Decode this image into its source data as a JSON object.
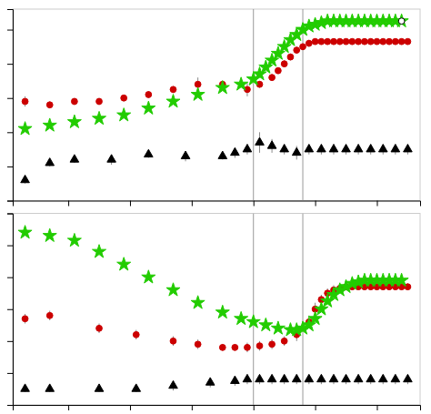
{
  "chart_data": [
    {
      "type": "scatter",
      "xlim": [
        -0.18,
        1.14
      ],
      "xticks": [
        0.0,
        0.2,
        0.4,
        0.6,
        0.8,
        1.0
      ],
      "ylim": [
        0.0,
        1.12
      ],
      "yticks": [
        0.0,
        0.2,
        0.4,
        0.6,
        0.8,
        1.0
      ],
      "tick_labels": false,
      "vlines": [
        {
          "x": 0.6,
          "color": "#999999"
        },
        {
          "x": 0.76,
          "color": "#999999"
        }
      ],
      "series": [
        {
          "color": "#cc0000",
          "marker": "circle",
          "x": [
            -0.14,
            -0.06,
            0.02,
            0.1,
            0.18,
            0.26,
            0.34,
            0.42,
            0.5,
            0.58,
            0.62,
            0.66,
            0.68,
            0.7,
            0.72,
            0.74,
            0.76,
            0.78,
            0.8,
            0.82,
            0.84,
            0.86,
            0.88,
            0.9,
            0.92,
            0.94,
            0.96,
            0.98,
            1.0,
            1.02,
            1.04,
            1.06,
            1.08,
            1.1
          ],
          "values": [
            0.58,
            0.56,
            0.58,
            0.58,
            0.6,
            0.62,
            0.65,
            0.68,
            0.68,
            0.65,
            0.68,
            0.72,
            0.76,
            0.8,
            0.84,
            0.88,
            0.9,
            0.92,
            0.93,
            0.93,
            0.93,
            0.93,
            0.93,
            0.93,
            0.93,
            0.93,
            0.93,
            0.93,
            0.93,
            0.93,
            0.93,
            0.93,
            0.93,
            0.93
          ],
          "errors": [
            0.03,
            0.02,
            0.02,
            0.02,
            0.02,
            0.02,
            0.02,
            0.04,
            0.02,
            0.04,
            0.02,
            0.02,
            0.02,
            0.02,
            0.02,
            0.02,
            0.02,
            0.02,
            0.01,
            0.01,
            0.01,
            0.01,
            0.01,
            0.01,
            0.01,
            0.01,
            0.01,
            0.01,
            0.01,
            0.01,
            0.01,
            0.01,
            0.01,
            0.01
          ]
        },
        {
          "color": "#22cc00",
          "marker": "star",
          "x": [
            -0.14,
            -0.06,
            0.02,
            0.1,
            0.18,
            0.26,
            0.34,
            0.42,
            0.5,
            0.56,
            0.6,
            0.62,
            0.64,
            0.66,
            0.68,
            0.7,
            0.72,
            0.74,
            0.76,
            0.78,
            0.8,
            0.82,
            0.84,
            0.86,
            0.88,
            0.9,
            0.92,
            0.94,
            0.96,
            0.98,
            1.0,
            1.02,
            1.04,
            1.06,
            1.08
          ],
          "values": [
            0.42,
            0.44,
            0.46,
            0.48,
            0.5,
            0.54,
            0.58,
            0.62,
            0.66,
            0.68,
            0.71,
            0.74,
            0.78,
            0.82,
            0.86,
            0.9,
            0.94,
            0.97,
            1.0,
            1.02,
            1.03,
            1.04,
            1.05,
            1.05,
            1.05,
            1.05,
            1.05,
            1.05,
            1.05,
            1.05,
            1.05,
            1.05,
            1.05,
            1.05,
            1.05
          ]
        },
        {
          "color": "#000000",
          "marker": "triangle",
          "x": [
            -0.14,
            -0.06,
            0.02,
            0.14,
            0.26,
            0.38,
            0.5,
            0.54,
            0.58,
            0.62,
            0.66,
            0.7,
            0.74,
            0.78,
            0.82,
            0.86,
            0.9,
            0.94,
            0.98,
            1.02,
            1.06,
            1.1
          ],
          "values": [
            0.12,
            0.22,
            0.24,
            0.24,
            0.27,
            0.26,
            0.26,
            0.28,
            0.3,
            0.34,
            0.32,
            0.3,
            0.28,
            0.3,
            0.3,
            0.3,
            0.3,
            0.3,
            0.3,
            0.3,
            0.3,
            0.3
          ],
          "errors": [
            0.02,
            0.02,
            0.02,
            0.03,
            0.02,
            0.03,
            0.02,
            0.03,
            0.03,
            0.06,
            0.04,
            0.03,
            0.04,
            0.03,
            0.03,
            0.03,
            0.03,
            0.03,
            0.03,
            0.03,
            0.03,
            0.03
          ]
        },
        {
          "color": "#000000",
          "marker": "open_circle",
          "x": [
            1.08
          ],
          "values": [
            1.05
          ]
        }
      ]
    },
    {
      "type": "scatter",
      "xlim": [
        -0.18,
        1.14
      ],
      "xticks": [
        0.0,
        0.2,
        0.4,
        0.6,
        0.8,
        1.0
      ],
      "ylim": [
        0.0,
        1.2
      ],
      "yticks": [
        0.0,
        0.2,
        0.4,
        0.6,
        0.8,
        1.0,
        1.2
      ],
      "tick_labels": false,
      "vlines": [
        {
          "x": 0.6,
          "color": "#999999"
        },
        {
          "x": 0.76,
          "color": "#999999"
        }
      ],
      "series": [
        {
          "color": "#cc0000",
          "marker": "circle",
          "x": [
            -0.14,
            -0.06,
            0.1,
            0.22,
            0.34,
            0.42,
            0.5,
            0.54,
            0.58,
            0.62,
            0.66,
            0.7,
            0.74,
            0.78,
            0.8,
            0.82,
            0.84,
            0.86,
            0.88,
            0.9,
            0.92,
            0.94,
            0.96,
            0.98,
            1.0,
            1.02,
            1.04,
            1.06,
            1.08,
            1.1
          ],
          "values": [
            0.54,
            0.56,
            0.48,
            0.44,
            0.4,
            0.38,
            0.36,
            0.36,
            0.36,
            0.37,
            0.38,
            0.4,
            0.44,
            0.52,
            0.6,
            0.66,
            0.7,
            0.72,
            0.73,
            0.74,
            0.74,
            0.74,
            0.74,
            0.74,
            0.74,
            0.74,
            0.74,
            0.74,
            0.74,
            0.74
          ],
          "errors": [
            0.03,
            0.03,
            0.03,
            0.03,
            0.03,
            0.03,
            0.02,
            0.02,
            0.03,
            0.03,
            0.03,
            0.03,
            0.04,
            0.04,
            0.04,
            0.03,
            0.03,
            0.03,
            0.02,
            0.02,
            0.02,
            0.02,
            0.02,
            0.02,
            0.02,
            0.02,
            0.02,
            0.02,
            0.02,
            0.02
          ]
        },
        {
          "color": "#22cc00",
          "marker": "star",
          "x": [
            -0.14,
            -0.06,
            0.02,
            0.1,
            0.18,
            0.26,
            0.34,
            0.42,
            0.5,
            0.56,
            0.6,
            0.64,
            0.68,
            0.72,
            0.74,
            0.76,
            0.78,
            0.8,
            0.82,
            0.84,
            0.86,
            0.88,
            0.9,
            0.92,
            0.94,
            0.96,
            0.98,
            1.0,
            1.02,
            1.04,
            1.06,
            1.08
          ],
          "values": [
            1.08,
            1.06,
            1.03,
            0.96,
            0.88,
            0.8,
            0.72,
            0.64,
            0.58,
            0.54,
            0.52,
            0.5,
            0.48,
            0.47,
            0.47,
            0.48,
            0.5,
            0.54,
            0.6,
            0.65,
            0.69,
            0.72,
            0.74,
            0.76,
            0.77,
            0.78,
            0.78,
            0.78,
            0.78,
            0.78,
            0.78,
            0.78
          ]
        },
        {
          "color": "#000000",
          "marker": "triangle",
          "x": [
            -0.14,
            -0.06,
            0.1,
            0.22,
            0.34,
            0.46,
            0.54,
            0.58,
            0.62,
            0.66,
            0.7,
            0.74,
            0.78,
            0.82,
            0.86,
            0.9,
            0.94,
            0.98,
            1.02,
            1.06,
            1.1
          ],
          "values": [
            0.1,
            0.1,
            0.1,
            0.1,
            0.12,
            0.14,
            0.15,
            0.16,
            0.16,
            0.16,
            0.16,
            0.16,
            0.16,
            0.16,
            0.16,
            0.16,
            0.16,
            0.16,
            0.16,
            0.16,
            0.16
          ],
          "errors": [
            0.02,
            0.02,
            0.02,
            0.02,
            0.03,
            0.03,
            0.03,
            0.03,
            0.03,
            0.03,
            0.03,
            0.03,
            0.03,
            0.03,
            0.03,
            0.03,
            0.03,
            0.03,
            0.03,
            0.03,
            0.03
          ]
        }
      ]
    }
  ]
}
